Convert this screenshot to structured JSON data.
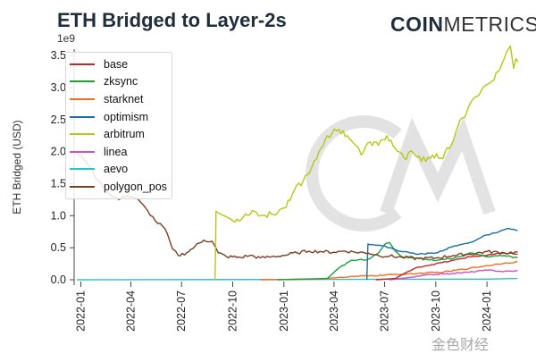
{
  "header": {
    "title": "ETH Bridged to Layer-2s",
    "brand_bold": "COIN",
    "brand_light": "METRICS"
  },
  "watermark": "金色财经",
  "chart_data": {
    "type": "line",
    "title": "ETH Bridged to Layer-2s",
    "xlabel": "",
    "ylabel": "ETH Bridged (USD)",
    "exponent_label": "1e9",
    "ylim": [
      0,
      3.6
    ],
    "xlim": [
      "2021-12-20",
      "2024-03-05"
    ],
    "yticks": [
      0.0,
      0.5,
      1.0,
      1.5,
      2.0,
      2.5,
      3.0,
      3.5
    ],
    "ytick_labels": [
      "0.0",
      "0.5",
      "1.0",
      "1.5",
      "2.0",
      "2.5",
      "3.0",
      "3.5"
    ],
    "xticks": [
      "2022-01",
      "2022-04",
      "2022-07",
      "2022-10",
      "2023-01",
      "2023-04",
      "2023-07",
      "2023-10",
      "2024-01"
    ],
    "grid": false,
    "legend_position": "top-left",
    "series": [
      {
        "name": "base",
        "color": "#c0282d",
        "points": [
          [
            "2023-06-15",
            0
          ],
          [
            "2023-07-20",
            0.02
          ],
          [
            "2023-08-10",
            0.12
          ],
          [
            "2023-09-01",
            0.2
          ],
          [
            "2023-10-01",
            0.25
          ],
          [
            "2023-11-01",
            0.3
          ],
          [
            "2023-12-01",
            0.36
          ],
          [
            "2024-01-01",
            0.38
          ],
          [
            "2024-02-01",
            0.42
          ],
          [
            "2024-02-25",
            0.4
          ]
        ]
      },
      {
        "name": "zksync",
        "color": "#1f9e3a",
        "points": [
          [
            "2022-12-20",
            0
          ],
          [
            "2023-03-20",
            0.02
          ],
          [
            "2023-04-05",
            0.15
          ],
          [
            "2023-05-01",
            0.3
          ],
          [
            "2023-06-01",
            0.32
          ],
          [
            "2023-06-20",
            0.42
          ],
          [
            "2023-07-01",
            0.55
          ],
          [
            "2023-07-10",
            0.58
          ],
          [
            "2023-07-20",
            0.45
          ],
          [
            "2023-08-01",
            0.36
          ],
          [
            "2023-09-01",
            0.34
          ],
          [
            "2023-10-01",
            0.3
          ],
          [
            "2023-11-01",
            0.33
          ],
          [
            "2023-12-01",
            0.42
          ],
          [
            "2024-01-01",
            0.36
          ],
          [
            "2024-02-01",
            0.38
          ],
          [
            "2024-02-25",
            0.34
          ]
        ]
      },
      {
        "name": "starknet",
        "color": "#f07020",
        "points": [
          [
            "2022-11-20",
            0
          ],
          [
            "2023-03-01",
            0.01
          ],
          [
            "2023-04-15",
            0.04
          ],
          [
            "2023-06-01",
            0.06
          ],
          [
            "2023-07-15",
            0.08
          ],
          [
            "2023-09-01",
            0.1
          ],
          [
            "2023-10-15",
            0.12
          ],
          [
            "2023-12-01",
            0.18
          ],
          [
            "2024-01-01",
            0.22
          ],
          [
            "2024-02-01",
            0.26
          ],
          [
            "2024-02-25",
            0.28
          ]
        ]
      },
      {
        "name": "optimism",
        "color": "#1a6fa0",
        "points": [
          [
            "2023-05-30",
            0
          ],
          [
            "2023-06-01",
            0.56
          ],
          [
            "2023-06-20",
            0.54
          ],
          [
            "2023-07-10",
            0.5
          ],
          [
            "2023-08-01",
            0.44
          ],
          [
            "2023-09-01",
            0.4
          ],
          [
            "2023-10-01",
            0.42
          ],
          [
            "2023-11-01",
            0.52
          ],
          [
            "2023-12-01",
            0.58
          ],
          [
            "2024-01-01",
            0.7
          ],
          [
            "2024-01-20",
            0.74
          ],
          [
            "2024-02-10",
            0.8
          ],
          [
            "2024-02-25",
            0.77
          ]
        ]
      },
      {
        "name": "arbitrum",
        "color": "#b8c70f",
        "points": [
          [
            "2022-08-30",
            0
          ],
          [
            "2022-08-31",
            0.35
          ],
          [
            "2022-09-01",
            1.07
          ],
          [
            "2022-09-15",
            1.0
          ],
          [
            "2022-10-01",
            0.92
          ],
          [
            "2022-10-20",
            0.98
          ],
          [
            "2022-11-05",
            1.08
          ],
          [
            "2022-11-20",
            1.0
          ],
          [
            "2022-12-10",
            1.02
          ],
          [
            "2023-01-01",
            1.12
          ],
          [
            "2023-01-20",
            1.4
          ],
          [
            "2023-02-05",
            1.55
          ],
          [
            "2023-02-20",
            1.75
          ],
          [
            "2023-03-05",
            2.0
          ],
          [
            "2023-03-20",
            2.25
          ],
          [
            "2023-04-10",
            2.35
          ],
          [
            "2023-04-25",
            2.25
          ],
          [
            "2023-05-10",
            2.1
          ],
          [
            "2023-05-20",
            1.95
          ],
          [
            "2023-06-05",
            2.15
          ],
          [
            "2023-06-20",
            2.1
          ],
          [
            "2023-07-05",
            2.25
          ],
          [
            "2023-07-20",
            2.05
          ],
          [
            "2023-08-05",
            1.9
          ],
          [
            "2023-08-20",
            2.0
          ],
          [
            "2023-09-05",
            1.85
          ],
          [
            "2023-09-25",
            1.95
          ],
          [
            "2023-10-10",
            1.9
          ],
          [
            "2023-10-25",
            2.05
          ],
          [
            "2023-11-10",
            2.4
          ],
          [
            "2023-11-25",
            2.6
          ],
          [
            "2023-12-10",
            2.85
          ],
          [
            "2023-12-25",
            3.0
          ],
          [
            "2024-01-10",
            3.1
          ],
          [
            "2024-01-25",
            3.3
          ],
          [
            "2024-02-05",
            3.55
          ],
          [
            "2024-02-12",
            3.65
          ],
          [
            "2024-02-18",
            3.3
          ],
          [
            "2024-02-22",
            3.45
          ],
          [
            "2024-02-26",
            3.4
          ]
        ]
      },
      {
        "name": "linea",
        "color": "#d34fc3",
        "points": [
          [
            "2023-07-10",
            0
          ],
          [
            "2023-08-20",
            0.04
          ],
          [
            "2023-09-20",
            0.08
          ],
          [
            "2023-11-01",
            0.1
          ],
          [
            "2023-12-01",
            0.12
          ],
          [
            "2024-01-01",
            0.15
          ],
          [
            "2024-02-01",
            0.13
          ],
          [
            "2024-02-25",
            0.14
          ]
        ]
      },
      {
        "name": "aevo",
        "color": "#2ec4c4",
        "points": [
          [
            "2021-12-25",
            0
          ],
          [
            "2024-01-01",
            0.01
          ],
          [
            "2024-02-25",
            0.02
          ]
        ]
      },
      {
        "name": "polygon_pos",
        "color": "#7b3f21",
        "points": [
          [
            "2021-12-25",
            1.98
          ],
          [
            "2022-01-10",
            1.85
          ],
          [
            "2022-02-01",
            1.55
          ],
          [
            "2022-02-20",
            1.35
          ],
          [
            "2022-03-10",
            1.25
          ],
          [
            "2022-03-25",
            1.32
          ],
          [
            "2022-04-10",
            1.28
          ],
          [
            "2022-05-01",
            1.08
          ],
          [
            "2022-05-15",
            0.92
          ],
          [
            "2022-06-01",
            0.8
          ],
          [
            "2022-06-15",
            0.48
          ],
          [
            "2022-06-25",
            0.38
          ],
          [
            "2022-07-10",
            0.42
          ],
          [
            "2022-07-25",
            0.52
          ],
          [
            "2022-08-10",
            0.62
          ],
          [
            "2022-08-25",
            0.6
          ],
          [
            "2022-09-05",
            0.42
          ],
          [
            "2022-09-20",
            0.36
          ],
          [
            "2022-10-15",
            0.35
          ],
          [
            "2022-11-01",
            0.38
          ],
          [
            "2022-11-20",
            0.34
          ],
          [
            "2022-12-10",
            0.36
          ],
          [
            "2023-01-01",
            0.38
          ],
          [
            "2023-01-25",
            0.42
          ],
          [
            "2023-02-15",
            0.45
          ],
          [
            "2023-03-10",
            0.44
          ],
          [
            "2023-04-01",
            0.43
          ],
          [
            "2023-04-20",
            0.45
          ],
          [
            "2023-05-10",
            0.43
          ],
          [
            "2023-06-01",
            0.42
          ],
          [
            "2023-06-20",
            0.38
          ],
          [
            "2023-07-10",
            0.37
          ],
          [
            "2023-08-01",
            0.35
          ],
          [
            "2023-09-01",
            0.33
          ],
          [
            "2023-10-01",
            0.34
          ],
          [
            "2023-11-01",
            0.38
          ],
          [
            "2023-12-01",
            0.4
          ],
          [
            "2024-01-01",
            0.44
          ],
          [
            "2024-02-01",
            0.42
          ],
          [
            "2024-02-25",
            0.43
          ]
        ]
      }
    ]
  }
}
